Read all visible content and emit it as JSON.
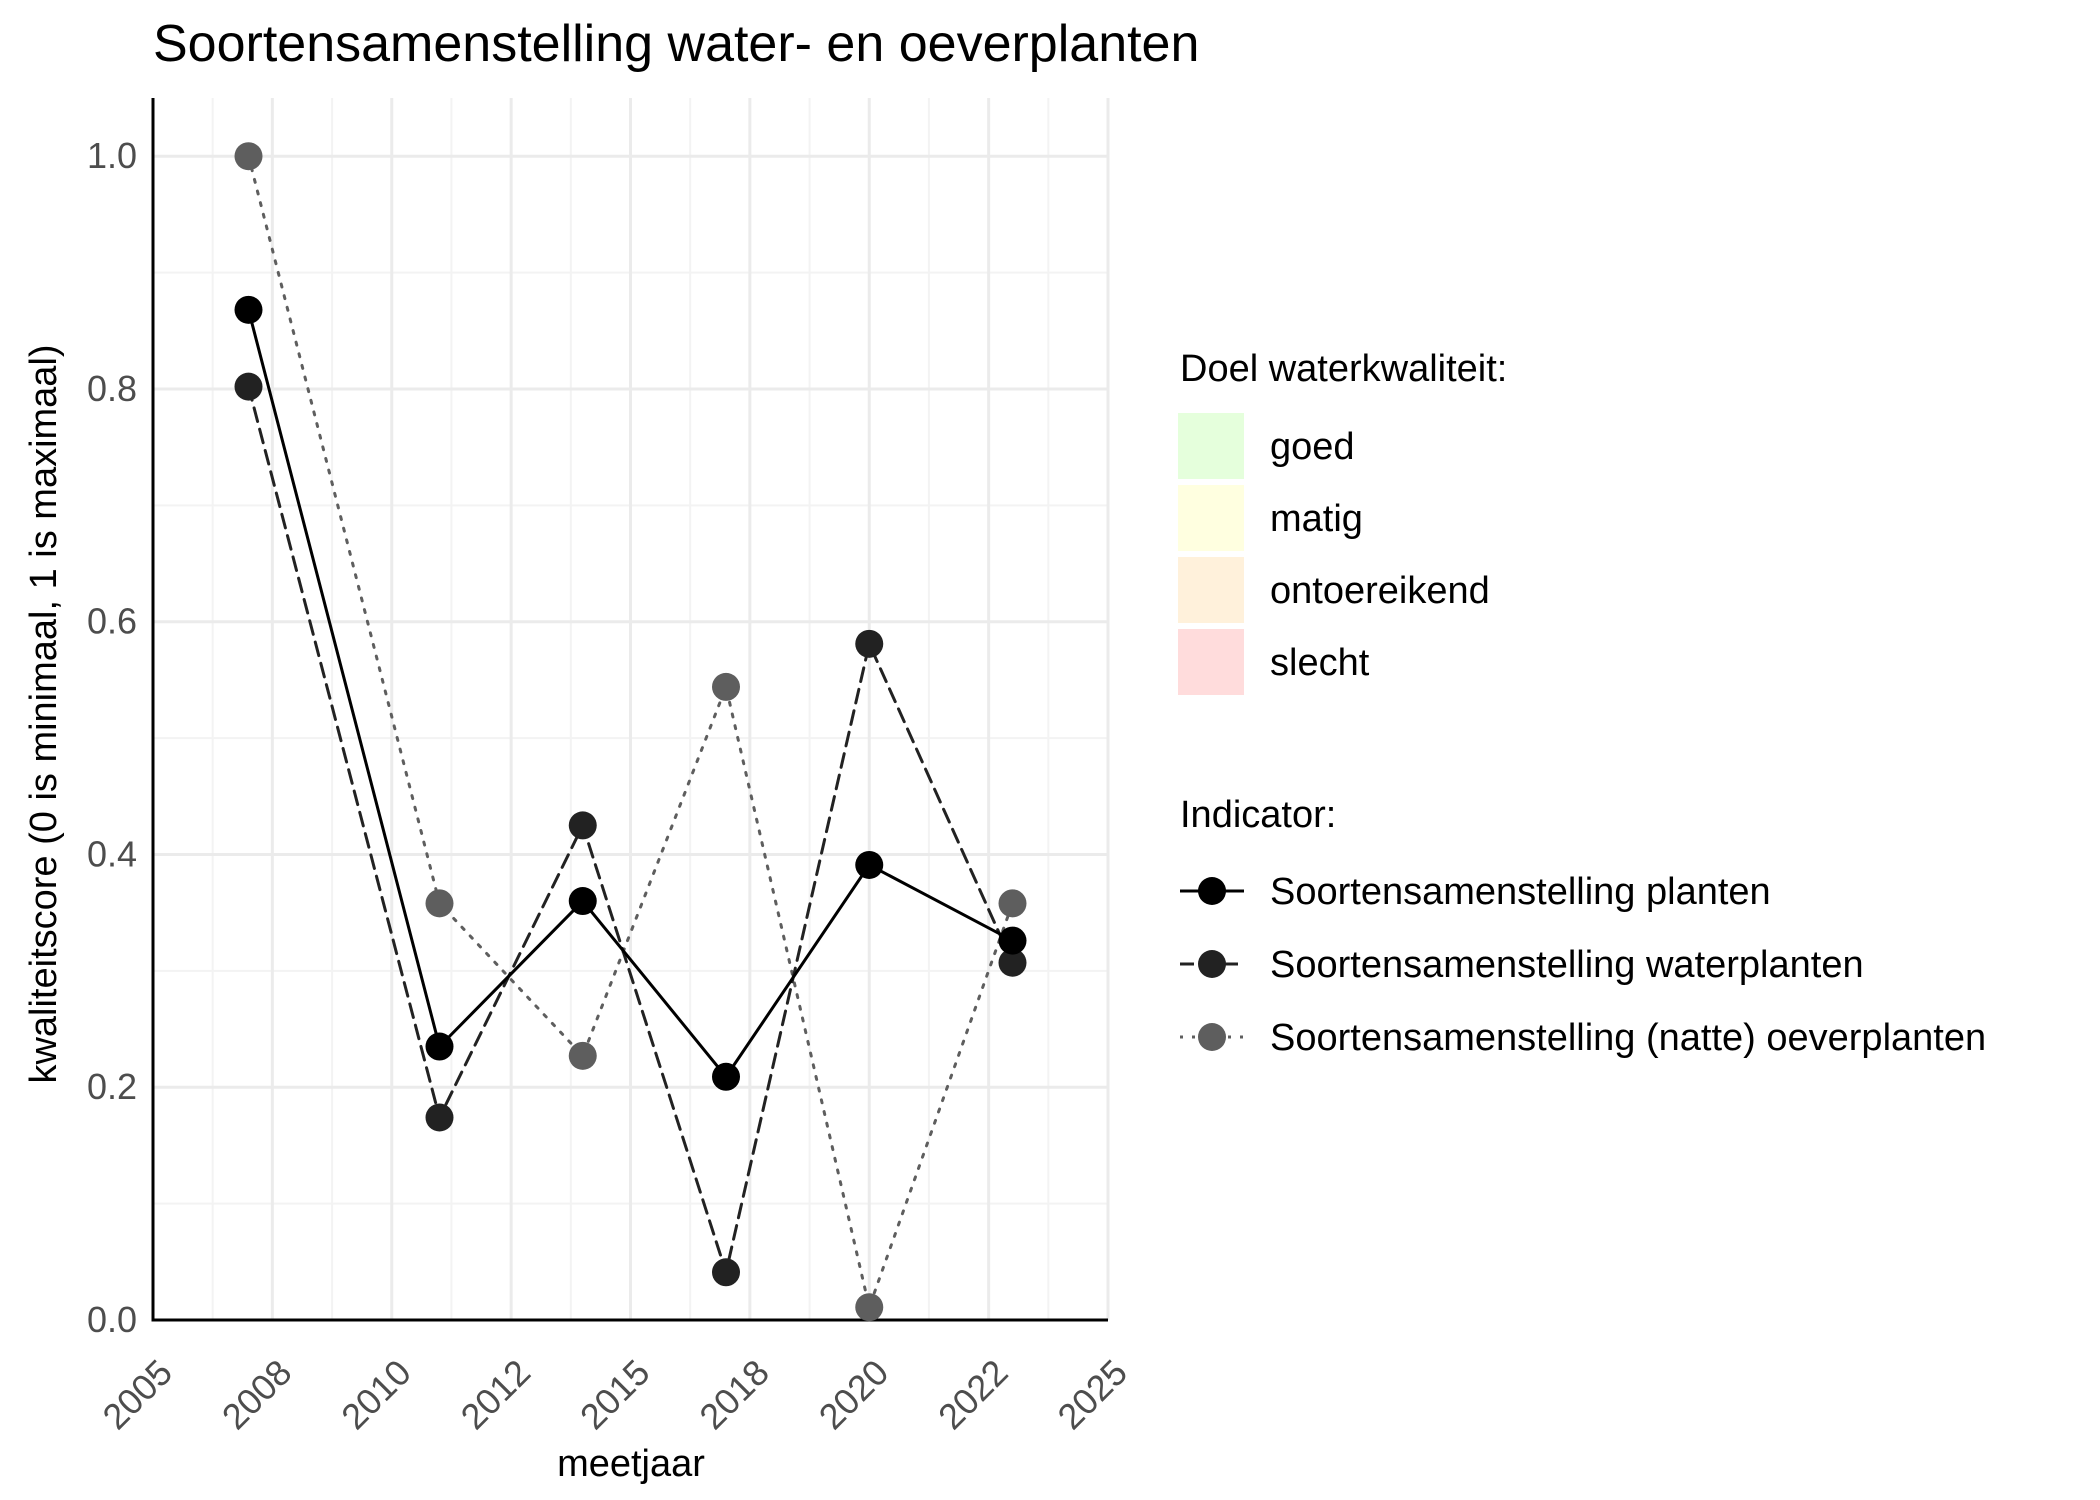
{
  "chart_data": {
    "type": "line",
    "title": "Soortensamenstelling water- en oeverplanten",
    "xlabel": "meetjaar",
    "ylabel": "kwaliteitscore (0 is minimaal, 1 is maximaal)",
    "xlim": [
      2005,
      2025
    ],
    "ylim": [
      0,
      1.0
    ],
    "x_ticks": [
      2005,
      2007.5,
      2010,
      2012.5,
      2015,
      2017.5,
      2020,
      2022.5,
      2025
    ],
    "x_tick_labels": [
      "2005",
      "2008",
      "2010",
      "2012",
      "2015",
      "2018",
      "2020",
      "2022",
      "2025"
    ],
    "y_ticks": [
      0,
      0.2,
      0.4,
      0.6,
      0.8,
      1.0
    ],
    "y_tick_labels": [
      "0.0",
      "0.2",
      "0.4",
      "0.6",
      "0.8",
      "1.0"
    ],
    "grid": true,
    "legend_position": "right",
    "quality_legend": {
      "title": "Doel waterkwaliteit:",
      "items": [
        {
          "label": "goed",
          "color": "#e5ffdc"
        },
        {
          "label": "matig",
          "color": "#ffffe0"
        },
        {
          "label": "ontoereikend",
          "color": "#fff1db"
        },
        {
          "label": "slecht",
          "color": "#ffdcdc"
        }
      ]
    },
    "indicator_legend": {
      "title": "Indicator:"
    },
    "series": [
      {
        "name": "Soortensamenstelling planten",
        "color": "#000000",
        "line_style": "solid",
        "x": [
          2007,
          2011,
          2014,
          2017,
          2020,
          2023
        ],
        "values": [
          0.868,
          0.235,
          0.36,
          0.209,
          0.391,
          0.326
        ]
      },
      {
        "name": "Soortensamenstelling waterplanten",
        "color": "#222222",
        "line_style": "dashed",
        "x": [
          2007,
          2011,
          2014,
          2017,
          2020,
          2023
        ],
        "values": [
          0.802,
          0.174,
          0.425,
          0.041,
          0.581,
          0.307
        ]
      },
      {
        "name": "Soortensamenstelling (natte) oeverplanten",
        "color": "#5e5e5e",
        "line_style": "dotted",
        "x": [
          2007,
          2011,
          2014,
          2017,
          2020,
          2023
        ],
        "values": [
          1.0,
          0.358,
          0.227,
          0.544,
          0.011,
          0.358
        ]
      }
    ]
  }
}
